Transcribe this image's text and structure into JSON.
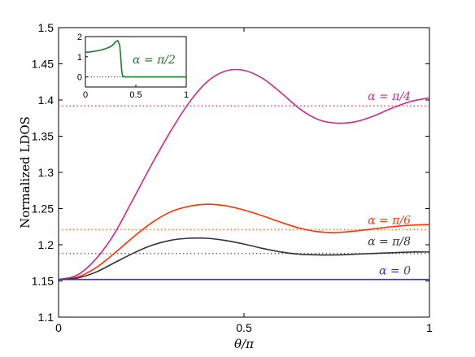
{
  "chart_data": [
    {
      "type": "line",
      "xlabel": "θ/π",
      "ylabel": "Normalized LDOS",
      "xlim": [
        0,
        1
      ],
      "ylim": [
        1.1,
        1.5
      ],
      "x_ticks": [
        "0",
        "0.5",
        "1"
      ],
      "y_ticks": [
        "1.1",
        "1.15",
        "1.2",
        "1.25",
        "1.3",
        "1.35",
        "1.4",
        "1.45",
        "1.5"
      ],
      "grid": false,
      "series": [
        {
          "name": "α = π/4",
          "color": "#cc2a8a",
          "x": [
            0,
            0.05,
            0.1,
            0.15,
            0.2,
            0.25,
            0.3,
            0.35,
            0.4,
            0.45,
            0.5,
            0.55,
            0.6,
            0.65,
            0.7,
            0.75,
            0.8,
            0.85,
            0.9,
            0.95,
            1.0
          ],
          "values": [
            1.152,
            1.158,
            1.18,
            1.215,
            1.262,
            1.31,
            1.355,
            1.395,
            1.425,
            1.44,
            1.441,
            1.43,
            1.41,
            1.388,
            1.373,
            1.368,
            1.37,
            1.378,
            1.389,
            1.398,
            1.403
          ],
          "dotted_reference": 1.392
        },
        {
          "name": "α = π/6",
          "color": "#ff3300",
          "x": [
            0,
            0.05,
            0.1,
            0.15,
            0.2,
            0.25,
            0.3,
            0.35,
            0.4,
            0.45,
            0.5,
            0.55,
            0.6,
            0.65,
            0.7,
            0.75,
            0.8,
            0.85,
            0.9,
            0.95,
            1.0
          ],
          "values": [
            1.152,
            1.155,
            1.168,
            1.188,
            1.21,
            1.23,
            1.245,
            1.253,
            1.256,
            1.254,
            1.248,
            1.24,
            1.231,
            1.223,
            1.218,
            1.217,
            1.219,
            1.222,
            1.225,
            1.227,
            1.228
          ],
          "dotted_reference": 1.221
        },
        {
          "name": "α = π/8",
          "color": "#333333",
          "x": [
            0,
            0.05,
            0.1,
            0.15,
            0.2,
            0.25,
            0.3,
            0.35,
            0.4,
            0.45,
            0.5,
            0.55,
            0.6,
            0.65,
            0.7,
            0.75,
            0.8,
            0.85,
            0.9,
            0.95,
            1.0
          ],
          "values": [
            1.152,
            1.154,
            1.162,
            1.175,
            1.188,
            1.199,
            1.206,
            1.209,
            1.209,
            1.206,
            1.201,
            1.195,
            1.19,
            1.187,
            1.186,
            1.186,
            1.187,
            1.188,
            1.189,
            1.19,
            1.19
          ],
          "dotted_reference": 1.188
        },
        {
          "name": "α = 0",
          "color": "#3333cc",
          "x": [
            0,
            1
          ],
          "values": [
            1.152,
            1.152
          ]
        }
      ]
    },
    {
      "type": "line",
      "inset": true,
      "xlim": [
        0,
        1
      ],
      "ylim": [
        -0.5,
        2
      ],
      "x_ticks": [
        "0",
        "0.5",
        "1"
      ],
      "y_ticks": [
        "0",
        "1",
        "2"
      ],
      "series": [
        {
          "name": "α = π/2",
          "color": "#1e7a2e",
          "x": [
            0,
            0.05,
            0.1,
            0.15,
            0.2,
            0.25,
            0.28,
            0.3,
            0.32,
            0.34,
            0.35,
            0.36,
            0.37,
            0.4,
            0.5,
            0.6,
            0.7,
            0.8,
            0.9,
            1.0
          ],
          "values": [
            1.22,
            1.24,
            1.28,
            1.33,
            1.4,
            1.5,
            1.62,
            1.75,
            1.8,
            1.6,
            1.0,
            0.3,
            0.02,
            0,
            0,
            0,
            0,
            0,
            0,
            0
          ],
          "dotted_reference": 0
        }
      ]
    }
  ]
}
